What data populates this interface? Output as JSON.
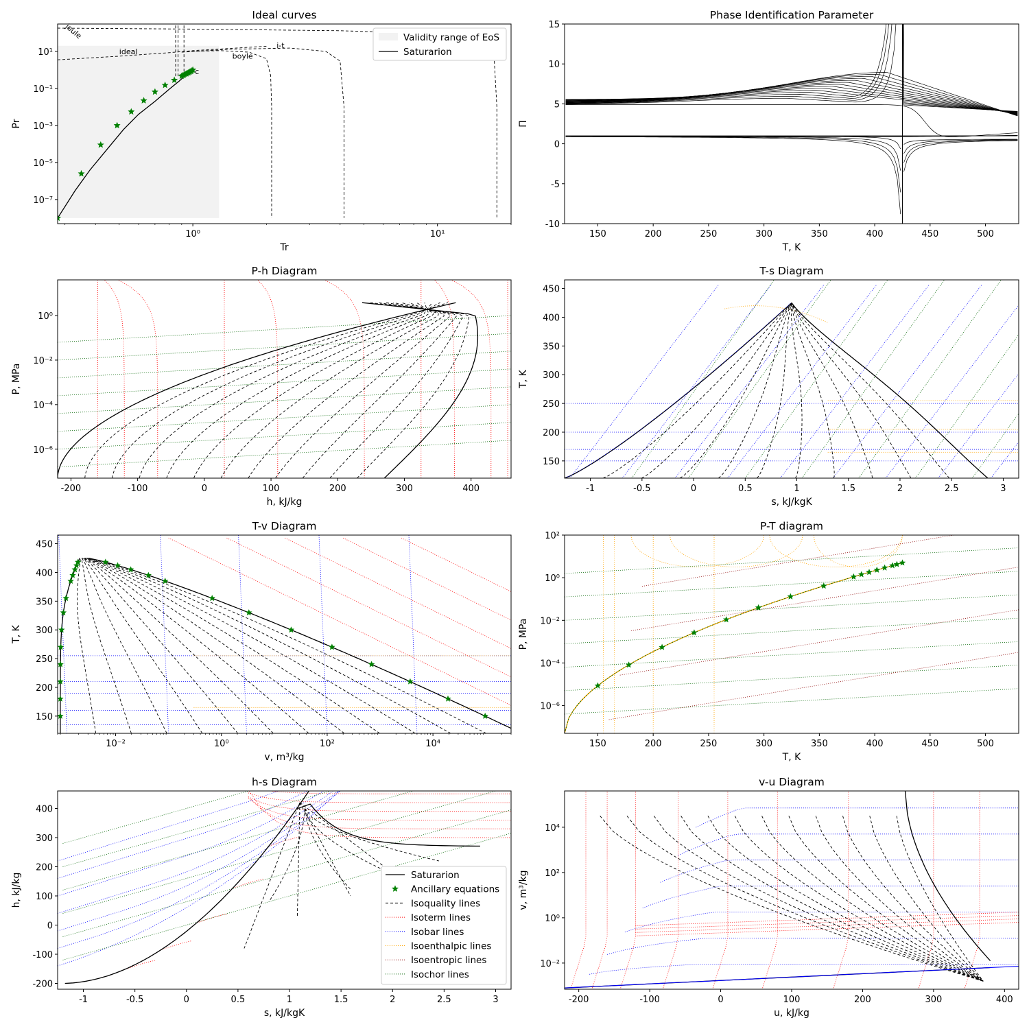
{
  "chart_data": [
    {
      "id": "ideal",
      "type": "line",
      "title": "Ideal curves",
      "xlabel": "Tr",
      "ylabel": "Pr",
      "xscale": "log",
      "yscale": "log",
      "xlim": [
        0.28,
        20.0
      ],
      "ylim": [
        5e-09,
        300
      ],
      "xticks": [
        {
          "v": 1,
          "label": "10⁰"
        },
        {
          "v": 10,
          "label": "10¹"
        }
      ],
      "yticks": [
        {
          "v": 1e-07,
          "label": "10⁻⁷"
        },
        {
          "v": 1e-05,
          "label": "10⁻⁵"
        },
        {
          "v": 0.001,
          "label": "10⁻³"
        },
        {
          "v": 0.1,
          "label": "10⁻¹"
        },
        {
          "v": 10,
          "label": "10¹"
        }
      ],
      "validity_range": {
        "tr": [
          0.28,
          1.28
        ],
        "pr": [
          1e-08,
          20
        ]
      },
      "saturation": {
        "tr": [
          0.28,
          0.33,
          0.38,
          0.45,
          0.52,
          0.6,
          0.7,
          0.8,
          0.88,
          0.94,
          1.0
        ],
        "pr": [
          1e-08,
          3e-07,
          4e-06,
          6e-05,
          0.0006,
          0.004,
          0.02,
          0.09,
          0.25,
          0.55,
          1.0
        ]
      },
      "ancillary": {
        "tr": [
          0.28,
          0.35,
          0.42,
          0.49,
          0.56,
          0.63,
          0.7,
          0.77,
          0.84,
          0.9,
          0.91,
          0.92,
          0.93,
          0.94,
          0.95,
          0.96,
          0.97,
          0.98,
          0.99,
          1.0
        ],
        "pr": [
          1e-08,
          2.5e-06,
          9e-05,
          0.001,
          0.0055,
          0.022,
          0.065,
          0.15,
          0.28,
          0.46,
          0.5,
          0.54,
          0.58,
          0.62,
          0.66,
          0.71,
          0.76,
          0.82,
          0.9,
          1.0
        ]
      },
      "dashed_curves": {
        "ideal": {
          "tr": [
            0.28,
            0.5,
            0.8,
            1.0,
            1.5,
            2.0
          ],
          "pr": [
            3.5,
            5.5,
            8.5,
            11,
            15,
            19
          ]
        },
        "boyle": {
          "tr": [
            0.95,
            1.3,
            1.7,
            2.0,
            2.08,
            2.1,
            2.1,
            2.1
          ],
          "pr": [
            10,
            11,
            9,
            4,
            0.5,
            0.01,
            1e-05,
            1e-08
          ]
        },
        "it": {
          "tr": [
            0.9,
            1.4,
            2.5,
            3.5,
            4.0,
            4.15,
            4.15
          ],
          "pr": [
            9,
            13,
            15,
            10,
            3,
            0.01,
            1e-08
          ]
        },
        "joule": {
          "tr": [
            0.28,
            1.0,
            4.0,
            10.0,
            15.0,
            17.0,
            17.5,
            17.5
          ],
          "pr": [
            180,
            160,
            130,
            90,
            50,
            10,
            0.01,
            1e-08
          ]
        },
        "vertical_a": {
          "tr": [
            0.85,
            0.85
          ],
          "pr": [
            250,
            0.35
          ]
        },
        "vertical_b": {
          "tr": [
            0.87,
            0.87
          ],
          "pr": [
            250,
            0.35
          ]
        },
        "vertical_c": {
          "tr": [
            0.92,
            0.92
          ],
          "pr": [
            250,
            0.6
          ]
        }
      },
      "annotations": [
        {
          "text": "joule",
          "tr": 0.3,
          "pr": 200
        },
        {
          "text": "ideal",
          "tr": 0.5,
          "pr": 7
        },
        {
          "text": "boyle",
          "tr": 1.45,
          "pr": 4
        },
        {
          "text": "i-t",
          "tr": 2.2,
          "pr": 15
        },
        {
          "text": "c",
          "tr": 1.02,
          "pr": 0.6
        }
      ],
      "legend": {
        "placement": "top-right",
        "entries": [
          "Validity range of EoS",
          "Saturarion"
        ]
      }
    },
    {
      "id": "pip",
      "type": "line",
      "title": "Phase Identification Parameter",
      "xlabel": "T, K",
      "ylabel": "Π",
      "xlim": [
        120,
        530
      ],
      "ylim": [
        -10,
        15
      ],
      "xticks": [
        150,
        200,
        250,
        300,
        350,
        400,
        450,
        500
      ],
      "yticks": [
        -10,
        -5,
        0,
        5,
        10,
        15
      ],
      "tc": 425
    },
    {
      "id": "ph",
      "type": "line",
      "title": "P-h Diagram",
      "xlabel": "h, kJ/kg",
      "ylabel": "P, MPa",
      "yscale": "log",
      "xlim": [
        -220,
        460
      ],
      "ylim": [
        5e-08,
        40
      ],
      "xticks": [
        -200,
        -100,
        0,
        100,
        200,
        300,
        400
      ],
      "yticks": [
        {
          "v": 1e-06,
          "label": "10⁻⁶"
        },
        {
          "v": 0.0001,
          "label": "10⁻⁴"
        },
        {
          "v": 0.01,
          "label": "10⁻²"
        },
        {
          "v": 1,
          "label": "10⁰"
        }
      ]
    },
    {
      "id": "ts",
      "type": "line",
      "title": "T-s Diagram",
      "xlabel": "s, kJ/kgK",
      "ylabel": "T, K",
      "xlim": [
        -1.25,
        3.15
      ],
      "ylim": [
        120,
        465
      ],
      "xticks": [
        -1.0,
        -0.5,
        0.0,
        0.5,
        1.0,
        1.5,
        2.0,
        2.5,
        3.0
      ],
      "yticks": [
        150,
        200,
        250,
        300,
        350,
        400,
        450
      ]
    },
    {
      "id": "tv",
      "type": "line",
      "title": "T-v Diagram",
      "xlabel": "v, m³/kg",
      "ylabel": "T, K",
      "xscale": "log",
      "xlim": [
        0.0008,
        300000
      ],
      "ylim": [
        120,
        465
      ],
      "xticks": [
        {
          "v": 0.01,
          "label": "10⁻²"
        },
        {
          "v": 1,
          "label": "10⁰"
        },
        {
          "v": 100,
          "label": "10²"
        },
        {
          "v": 10000,
          "label": "10⁴"
        }
      ],
      "yticks": [
        150,
        200,
        250,
        300,
        350,
        400,
        450
      ]
    },
    {
      "id": "pt",
      "type": "line",
      "title": "P-T diagram",
      "xlabel": "T, K",
      "ylabel": "P, MPa",
      "yscale": "log",
      "xlim": [
        120,
        530
      ],
      "ylim": [
        5e-08,
        100
      ],
      "xticks": [
        150,
        200,
        250,
        300,
        350,
        400,
        450,
        500
      ],
      "yticks": [
        {
          "v": 1e-06,
          "label": "10⁻⁶"
        },
        {
          "v": 0.0001,
          "label": "10⁻⁴"
        },
        {
          "v": 0.01,
          "label": "10⁻²"
        },
        {
          "v": 1,
          "label": "10⁰"
        },
        {
          "v": 100,
          "label": "10²"
        }
      ]
    },
    {
      "id": "hs",
      "type": "line",
      "title": "h-s Diagram",
      "xlabel": "s, kJ/kgK",
      "ylabel": "h, kJ/kg",
      "xlim": [
        -1.25,
        3.15
      ],
      "ylim": [
        -220,
        460
      ],
      "xticks": [
        -1.0,
        -0.5,
        0.0,
        0.5,
        1.0,
        1.5,
        2.0,
        2.5,
        3.0
      ],
      "yticks": [
        -200,
        -100,
        0,
        100,
        200,
        300,
        400
      ],
      "legend": {
        "placement": "lower-right",
        "entries": [
          {
            "label": "Saturarion",
            "style": "solid",
            "color": "#000000"
          },
          {
            "label": "Ancillary equations",
            "style": "star",
            "color": "#008000"
          },
          {
            "label": "Isoquality lines",
            "style": "dashed",
            "color": "#000000"
          },
          {
            "label": "Isoterm lines",
            "style": "dotted",
            "color": "#ff0000"
          },
          {
            "label": "Isobar lines",
            "style": "dotted",
            "color": "#0000ff"
          },
          {
            "label": "Isoenthalpic lines",
            "style": "dotted",
            "color": "#ffa500"
          },
          {
            "label": "Isoentropic lines",
            "style": "dotted",
            "color": "#8b0000"
          },
          {
            "label": "Isochor lines",
            "style": "dotted",
            "color": "#006400"
          }
        ]
      }
    },
    {
      "id": "vu",
      "type": "line",
      "title": "v-u Diagram",
      "xlabel": "u, kJ/kg",
      "ylabel": "v, m³/kg",
      "yscale": "log",
      "xlim": [
        -220,
        420
      ],
      "ylim": [
        0.0007,
        400000
      ],
      "xticks": [
        -200,
        -100,
        0,
        100,
        200,
        300,
        400
      ],
      "yticks": [
        {
          "v": 0.01,
          "label": "10⁻²"
        },
        {
          "v": 1,
          "label": "10⁰"
        },
        {
          "v": 100,
          "label": "10²"
        },
        {
          "v": 10000,
          "label": "10⁴"
        }
      ]
    }
  ],
  "colors": {
    "saturation": "#000000",
    "ancillary": "#008000",
    "isoquality": "#000000",
    "isotherm": "#ff0000",
    "isobar": "#0000ff",
    "isenthalp": "#ffa500",
    "isentrop": "#8b0000",
    "isochor": "#006400",
    "validity": "#f2f2f2"
  }
}
